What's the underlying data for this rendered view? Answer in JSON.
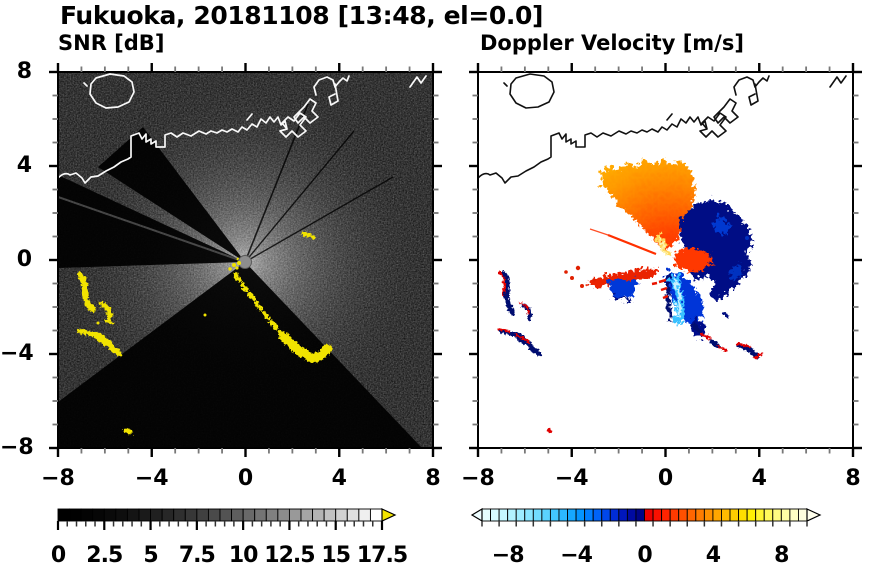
{
  "title": "Fukuoka, 20181108 [13:48, el=0.0]",
  "panels": {
    "snr": {
      "label": "SNR [dB]",
      "x_tick_labels": [
        "−8",
        "−4",
        "0",
        "4",
        "8"
      ],
      "y_tick_labels": [
        "8",
        "4",
        "0",
        "−4",
        "−8"
      ]
    },
    "velocity": {
      "label": "Doppler Velocity [m/s]",
      "x_tick_labels": [
        "−8",
        "−4",
        "0",
        "4",
        "8"
      ]
    }
  },
  "axes": {
    "x_range": [
      -8,
      8
    ],
    "y_range": [
      -8,
      8
    ],
    "major_tick_values": [
      -8,
      -4,
      0,
      4,
      8
    ],
    "minor_tick_step": 1
  },
  "colorbars": {
    "snr": {
      "range": [
        0,
        17.5
      ],
      "tick_labels": [
        "0",
        "2.5",
        "5",
        "7.5",
        "10",
        "12.5",
        "15",
        "17.5"
      ],
      "tick_values": [
        0,
        2.5,
        5,
        7.5,
        10,
        12.5,
        15,
        17.5
      ],
      "minor_tick_step": 0.5,
      "segment_count": 28,
      "overflow_arrow_color": "#f2e400",
      "colors": [
        "#000000",
        "#010101",
        "#030303",
        "#060606",
        "#0a0a0a",
        "#0e0e0e",
        "#141414",
        "#1a1a1a",
        "#202020",
        "#272727",
        "#2f2f2f",
        "#373737",
        "#404040",
        "#4a4a4a",
        "#535353",
        "#5e5e5e",
        "#696969",
        "#747474",
        "#808080",
        "#8c8c8c",
        "#999999",
        "#a6a6a6",
        "#b4b4b4",
        "#c2c2c2",
        "#d1d1d1",
        "#e0e0e0",
        "#efefef",
        "#ffffff"
      ]
    },
    "velocity": {
      "range": [
        -9.5,
        9.5
      ],
      "tick_labels": [
        "−8",
        "−4",
        "0",
        "4",
        "8"
      ],
      "tick_values": [
        -8,
        -4,
        0,
        4,
        8
      ],
      "minor_tick_step": 1,
      "segment_count": 38,
      "underflow_arrow_color": "#eefdff",
      "overflow_arrow_color": "#ffffec",
      "colors": [
        "#e6feff",
        "#d7fbff",
        "#c5f7ff",
        "#b2f2ff",
        "#9eecff",
        "#89e5ff",
        "#72dcff",
        "#5bd2ff",
        "#43c6ff",
        "#2cb8ff",
        "#16a8ff",
        "#0495ff",
        "#007eff",
        "#0063f8",
        "#0047ea",
        "#002cd6",
        "#0017bd",
        "#000aa1",
        "#000487",
        "#ec0000",
        "#f91000",
        "#ff2400",
        "#ff3a00",
        "#ff5000",
        "#ff6600",
        "#ff7c00",
        "#ff9100",
        "#ffa600",
        "#ffba00",
        "#ffcd00",
        "#ffdf00",
        "#fff004",
        "#fff532",
        "#fff95c",
        "#fffc82",
        "#fffea6",
        "#ffffc4",
        "#ffffdd"
      ]
    }
  },
  "colors": {
    "snr_background": "#060606",
    "snr_high_echo": "#f1e300",
    "coast_snr": "#f8f8f8",
    "coast_velocity": "#111111",
    "velocity_background": "#ffffff",
    "velocity_positive": "#ff5000",
    "velocity_negative": "#0034d8"
  },
  "chart_data": [
    {
      "type": "heatmap",
      "title": "SNR [dB]",
      "xlim": [
        -8,
        8
      ],
      "ylim": [
        -8,
        8
      ],
      "x_ticks": [
        -8,
        -4,
        0,
        4,
        8
      ],
      "y_ticks": [
        8,
        4,
        0,
        -4,
        -8
      ],
      "colorbar": {
        "min": 0,
        "max": 17.5,
        "tick_step": 2.5,
        "segments": 28,
        "scale": "grayscale black to white",
        "overflow": "yellow arrow for SNR > 17.5 dB"
      },
      "features": [
        "radar located at origin (0,0) with small gray center disk",
        "bright receiver noise fan around radar out to ~5 km, brightest toward N-NE",
        "black beam-blockage shadow wedges toward W (az 178-205 deg) and S-SW (az 47-143 deg) plus NW wedge and thin NE shadow rays",
        "yellow (>17.5 dB) clutter arc from (0,-0.6) km curving to (3.7,-3.8) km",
        "yellow clutter blobs near (-7.2,-0.5) to (-5.5,-4) km",
        "small yellow echo near (2.5,1.3) km and isolated dot near (-5.2,-7.1) km",
        "white coastline with island near (-6,7.5) and harbor piers near (3,6)"
      ]
    },
    {
      "type": "heatmap",
      "title": "Doppler Velocity [m/s]",
      "xlim": [
        -8,
        8
      ],
      "ylim": [
        -8,
        8
      ],
      "x_ticks": [
        -8,
        -4,
        0,
        4,
        8
      ],
      "y_ticks": [
        8,
        4,
        0,
        -4,
        -8
      ],
      "colorbar": {
        "min": -9.5,
        "max": 9.5,
        "tick_step": 4,
        "segments": 38,
        "scale": "pale cyan-blue-navy for negative, red-orange-yellow for positive"
      },
      "features": [
        "radar at origin with white center hole",
        "positive (receding, orange/red) fan N-NW of radar out to ~4.5 km, pale-yellow streak just NNW of center",
        "navy-blue negative patch E-NE of radar (0.5-3.5 km) wrapping a bright red patch just east of center",
        "negative (approaching) blue fan S-SE with cyan core, tapering tail to ~(1.8,-3) km",
        "red arm with royal-blue core pointing WSW from center",
        "thin red radial line toward WNW",
        "navy+red clutter pairs near (-7,-1.5) km and chain near (1.5,-3.5) km",
        "isolated red speck near (-5.1,-7.3) km; white (no data) elsewhere",
        "black coastline identical to SNR panel"
      ]
    }
  ]
}
